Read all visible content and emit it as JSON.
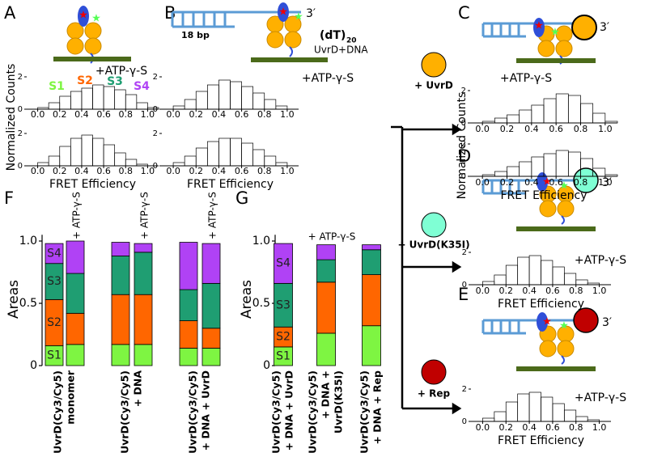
{
  "labels": {
    "panels": [
      "A",
      "B",
      "C",
      "D",
      "E",
      "F",
      "G"
    ]
  },
  "cartoons": {
    "B": {
      "left": "18 bp",
      "tail": "(dT)",
      "tail_sub": "20",
      "end": "3′",
      "caption": "UvrD+DNA"
    },
    "C": {
      "end": "3′"
    },
    "D": {
      "end": "3′"
    },
    "E": {
      "end": "3′"
    }
  },
  "arrows": [
    {
      "label": "+ UvrD",
      "color": "#ffb000"
    },
    {
      "label": "+ UvrD(K35I)",
      "color": "#7fffd4"
    },
    {
      "label": "+ Rep",
      "color": "#c00000"
    }
  ],
  "chart_data": [
    {
      "type": "histogram",
      "annotation": "+ATP-γ-S",
      "component_labels": [
        {
          "name": "S1",
          "color": "#7ef542"
        },
        {
          "name": "S2",
          "color": "#ff6600"
        },
        {
          "name": "S3",
          "color": "#1f9e72"
        },
        {
          "name": "S4",
          "color": "#b042f5"
        }
      ],
      "bins": [
        -0.1,
        0,
        0.1,
        0.2,
        0.3,
        0.4,
        0.5,
        0.6,
        0.7,
        0.8,
        0.9,
        1.0,
        1.1
      ],
      "values": [
        0,
        0.1,
        0.4,
        0.8,
        1.1,
        1.3,
        1.5,
        1.4,
        1.2,
        0.9,
        0.4,
        0.1
      ],
      "color": "#000000",
      "xlim": [
        -0.1,
        1.1
      ],
      "xticks": [
        {
          "value": 0,
          "label": "0.0"
        },
        0.2,
        0.4,
        0.6,
        0.8,
        {
          "value": 1,
          "label": "1.0"
        }
      ],
      "ylim": [
        0,
        2.8
      ],
      "yticks": [
        0,
        2
      ]
    },
    {
      "type": "histogram",
      "y_label": "Normalized Counts",
      "x_label": "FRET Efficiency",
      "bins": [
        -0.1,
        0,
        0.1,
        0.2,
        0.3,
        0.4,
        0.5,
        0.6,
        0.7,
        0.8,
        0.9,
        1.0,
        1.1
      ],
      "values": [
        0,
        0.2,
        0.6,
        1.2,
        1.7,
        1.9,
        1.7,
        1.3,
        0.8,
        0.4,
        0.1,
        0
      ],
      "color": "#000000",
      "xlim": [
        -0.1,
        1.1
      ],
      "xticks": [
        {
          "value": 0,
          "label": "0.0"
        },
        0.2,
        0.4,
        0.6,
        0.8,
        {
          "value": 1,
          "label": "1.0"
        }
      ],
      "ylim": [
        0,
        2.8
      ],
      "yticks": [
        0,
        2
      ]
    },
    {
      "type": "histogram",
      "annotation": "+ATP-γ-S",
      "bins": [
        -0.1,
        0,
        0.1,
        0.2,
        0.3,
        0.4,
        0.5,
        0.6,
        0.7,
        0.8,
        0.9,
        1.0,
        1.1
      ],
      "values": [
        0,
        0.2,
        0.6,
        1.1,
        1.5,
        1.8,
        1.7,
        1.4,
        1.0,
        0.6,
        0.2,
        0
      ],
      "color": "#000000",
      "xlim": [
        -0.1,
        1.1
      ],
      "xticks": [
        {
          "value": 0,
          "label": "0.0"
        },
        0.2,
        0.4,
        0.6,
        0.8,
        {
          "value": 1,
          "label": "1.0"
        }
      ],
      "ylim": [
        0,
        2.8
      ],
      "yticks": [
        0,
        2
      ]
    },
    {
      "type": "histogram",
      "x_label": "FRET Efficiency",
      "bins": [
        -0.1,
        0,
        0.1,
        0.2,
        0.3,
        0.4,
        0.5,
        0.6,
        0.7,
        0.8,
        0.9,
        1.0,
        1.1
      ],
      "values": [
        0,
        0.2,
        0.6,
        1.1,
        1.5,
        1.7,
        1.7,
        1.4,
        1.0,
        0.6,
        0.2,
        0
      ],
      "color": "#000000",
      "xlim": [
        -0.1,
        1.1
      ],
      "xticks": [
        {
          "value": 0,
          "label": "0.0"
        },
        0.2,
        0.4,
        0.6,
        0.8,
        {
          "value": 1,
          "label": "1.0"
        }
      ],
      "ylim": [
        0,
        2.8
      ],
      "yticks": [
        0,
        2
      ]
    },
    {
      "type": "histogram",
      "annotation": "+ATP-γ-S",
      "bins": [
        -0.1,
        0,
        0.1,
        0.2,
        0.3,
        0.4,
        0.5,
        0.6,
        0.7,
        0.8,
        0.9,
        1.0,
        1.1
      ],
      "values": [
        0,
        0.1,
        0.3,
        0.5,
        0.8,
        1.1,
        1.5,
        1.8,
        1.7,
        1.2,
        0.6,
        0.1
      ],
      "color": "#000000",
      "xlim": [
        -0.1,
        1.1
      ],
      "xticks": [
        {
          "value": 0,
          "label": "0.0"
        },
        0.2,
        0.4,
        0.6,
        0.8,
        {
          "value": 1,
          "label": "1.0"
        }
      ],
      "ylim": [
        0,
        2.8
      ],
      "yticks": [
        0,
        2
      ]
    },
    {
      "type": "histogram",
      "y_label": "Normalized Counts",
      "x_label": "FRET Efficiency",
      "bins": [
        -0.1,
        0,
        0.1,
        0.2,
        0.3,
        0.4,
        0.5,
        0.6,
        0.7,
        0.8,
        0.9,
        1.0,
        1.1
      ],
      "values": [
        0,
        0.1,
        0.3,
        0.6,
        0.9,
        1.2,
        1.4,
        1.6,
        1.5,
        1.1,
        0.5,
        0.1
      ],
      "color": "#000000",
      "xlim": [
        -0.1,
        1.1
      ],
      "xticks": [
        {
          "value": 0,
          "label": "0.0"
        },
        0.2,
        0.4,
        0.6,
        0.8,
        {
          "value": 1,
          "label": "1.0"
        }
      ],
      "ylim": [
        0,
        2.8
      ],
      "yticks": [
        0,
        2
      ]
    },
    {
      "type": "histogram",
      "annotation": "+ATP-γ-S",
      "x_label": "FRET Efficiency",
      "bins": [
        -0.1,
        0,
        0.1,
        0.2,
        0.3,
        0.4,
        0.5,
        0.6,
        0.7,
        0.8,
        0.9,
        1.0,
        1.1
      ],
      "values": [
        0,
        0.2,
        0.6,
        1.2,
        1.7,
        1.8,
        1.5,
        1.1,
        0.7,
        0.3,
        0.1,
        0
      ],
      "color": "#000000",
      "xlim": [
        -0.1,
        1.1
      ],
      "xticks": [
        {
          "value": 0,
          "label": "0.0"
        },
        0.2,
        0.4,
        0.6,
        0.8,
        {
          "value": 1,
          "label": "1.0"
        }
      ],
      "ylim": [
        0,
        2.8
      ],
      "yticks": [
        0,
        2
      ]
    },
    {
      "type": "histogram",
      "annotation": "+ATP-γ-S",
      "x_label": "FRET Efficiency",
      "bins": [
        -0.1,
        0,
        0.1,
        0.2,
        0.3,
        0.4,
        0.5,
        0.6,
        0.7,
        0.8,
        0.9,
        1.0,
        1.1
      ],
      "values": [
        0,
        0.2,
        0.6,
        1.2,
        1.7,
        1.8,
        1.5,
        1.1,
        0.7,
        0.3,
        0.1,
        0
      ],
      "color": "#000000",
      "xlim": [
        -0.1,
        1.1
      ],
      "xticks": [
        {
          "value": 0,
          "label": "0.0"
        },
        0.2,
        0.4,
        0.6,
        0.8,
        {
          "value": 1,
          "label": "1.0"
        }
      ],
      "ylim": [
        0,
        2.8
      ],
      "yticks": [
        0,
        2
      ]
    },
    {
      "type": "stacked_bar",
      "y_label": "Areas",
      "annotations": [
        "+ ATP-γ-S",
        "+ ATP-γ-S",
        "+ ATP-γ-S"
      ],
      "groups": [
        [
          "UvrD(Cy3/Cy5)",
          "monomer"
        ],
        [
          "UvrD(Cy3/Cy5)",
          "+ DNA"
        ],
        [
          "UvrD(Cy3/Cy5)",
          "+ DNA + UvrD"
        ]
      ],
      "series": [
        {
          "name": "S1",
          "color": "#7ef542",
          "values": [
            0.16,
            0.17,
            0.17,
            0.17,
            0.14,
            0.14
          ]
        },
        {
          "name": "S2",
          "color": "#ff6600",
          "values": [
            0.37,
            0.25,
            0.4,
            0.4,
            0.22,
            0.16
          ]
        },
        {
          "name": "S3",
          "color": "#1f9e72",
          "values": [
            0.29,
            0.32,
            0.31,
            0.34,
            0.25,
            0.36
          ]
        },
        {
          "name": "S4",
          "color": "#b042f5",
          "values": [
            0.16,
            0.26,
            0.11,
            0.07,
            0.38,
            0.32
          ]
        }
      ],
      "ylim": [
        0,
        1.05
      ],
      "yticks": [
        0,
        0.5,
        {
          "value": 1,
          "label": "1.0"
        }
      ]
    },
    {
      "type": "stacked_bar",
      "y_label": "Areas",
      "annotations": [
        "+ ATP-γ-S"
      ],
      "groups": [
        [
          "UvrD(Cy3/Cy5)",
          "+ DNA + UvrD"
        ],
        [
          "UvrD(Cy3/Cy5)",
          "+ DNA +",
          "UvrD(K35I)"
        ],
        [
          "UvrD(Cy3/Cy5)",
          "+ DNA + Rep"
        ]
      ],
      "series": [
        {
          "name": "S1",
          "color": "#7ef542",
          "values": [
            0.15,
            0.26,
            0.32
          ]
        },
        {
          "name": "S2",
          "color": "#ff6600",
          "values": [
            0.16,
            0.41,
            0.41
          ]
        },
        {
          "name": "S3",
          "color": "#1f9e72",
          "values": [
            0.35,
            0.18,
            0.2
          ]
        },
        {
          "name": "S4",
          "color": "#b042f5",
          "values": [
            0.32,
            0.12,
            0.04
          ]
        }
      ],
      "ylim": [
        0,
        1.05
      ],
      "yticks": [
        0,
        0.5,
        {
          "value": 1,
          "label": "1.0"
        }
      ]
    }
  ]
}
